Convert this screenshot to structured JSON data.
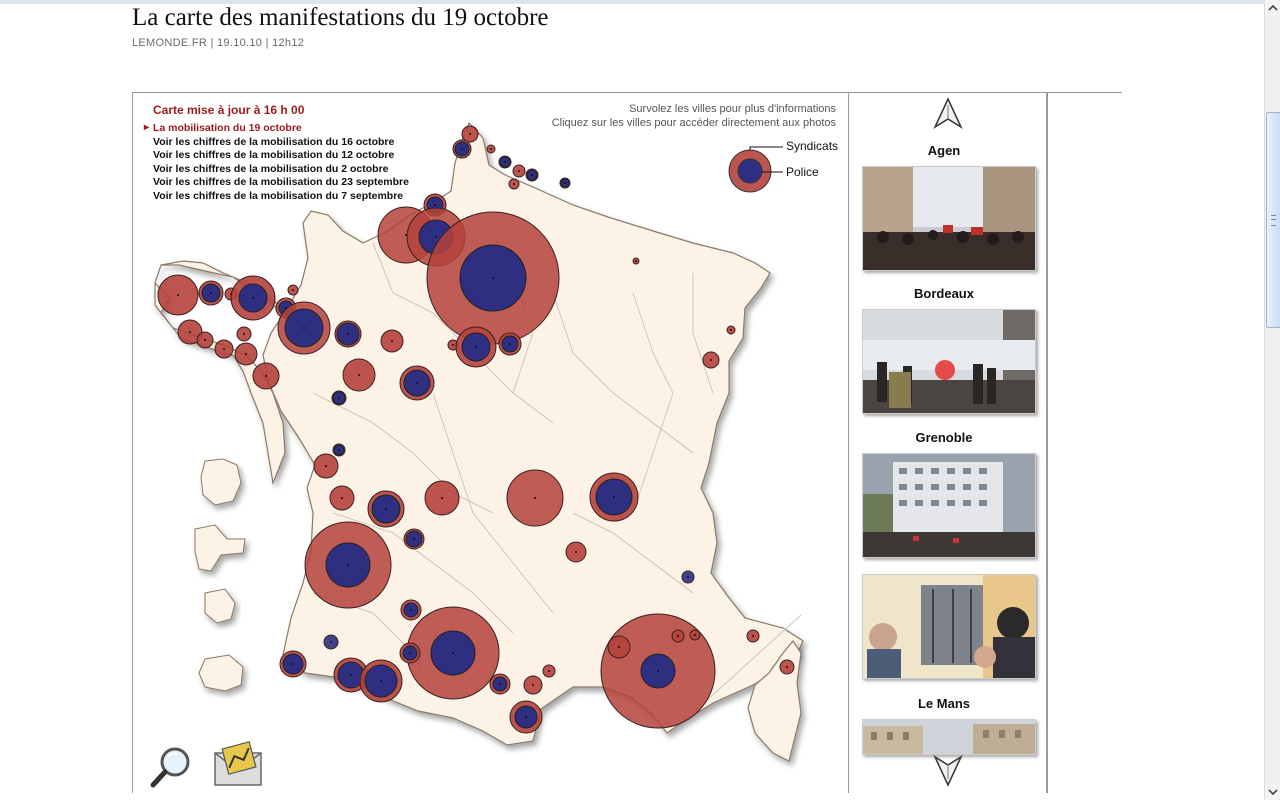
{
  "header": {
    "title": "La carte des manifestations du 19 octobre",
    "source": "LEMONDE.FR",
    "date": "19.10.10",
    "time": "12h12"
  },
  "map": {
    "update_title": "Carte mise à jour à 16 h 00",
    "active_link": "La mobilisation du 19 octobre",
    "links": [
      "Voir les chiffres de la mobilisation du 16 octobre",
      "Voir les chiffres de la mobilisation du 12 octobre",
      "Voir les chiffres de la mobilisation du 2 octobre",
      "Voir les chiffres de la mobilisation du 23 septembre",
      "Voir les chiffres de la mobilisation du 7 septembre"
    ],
    "hover_help_1": "Survolez les villes pour plus d'informations",
    "hover_help_2": "Cliquez sur les villes pour accéder directement aux photos",
    "legend": {
      "syndicats": "Syndicats",
      "police": "Police"
    },
    "colors": {
      "land": "#fcf2e6",
      "syndicats": "#b5423c",
      "police": "#2f2f82",
      "borders": "#c8bba8"
    }
  },
  "photos": {
    "cities": [
      "Agen",
      "Bordeaux",
      "Grenoble",
      "",
      "Le Mans"
    ]
  },
  "icons": {
    "zoom": "magnifier-icon",
    "mail": "envelope-icon",
    "scroll_up": "arrow-up-icon",
    "scroll_down": "arrow-down-icon"
  }
}
